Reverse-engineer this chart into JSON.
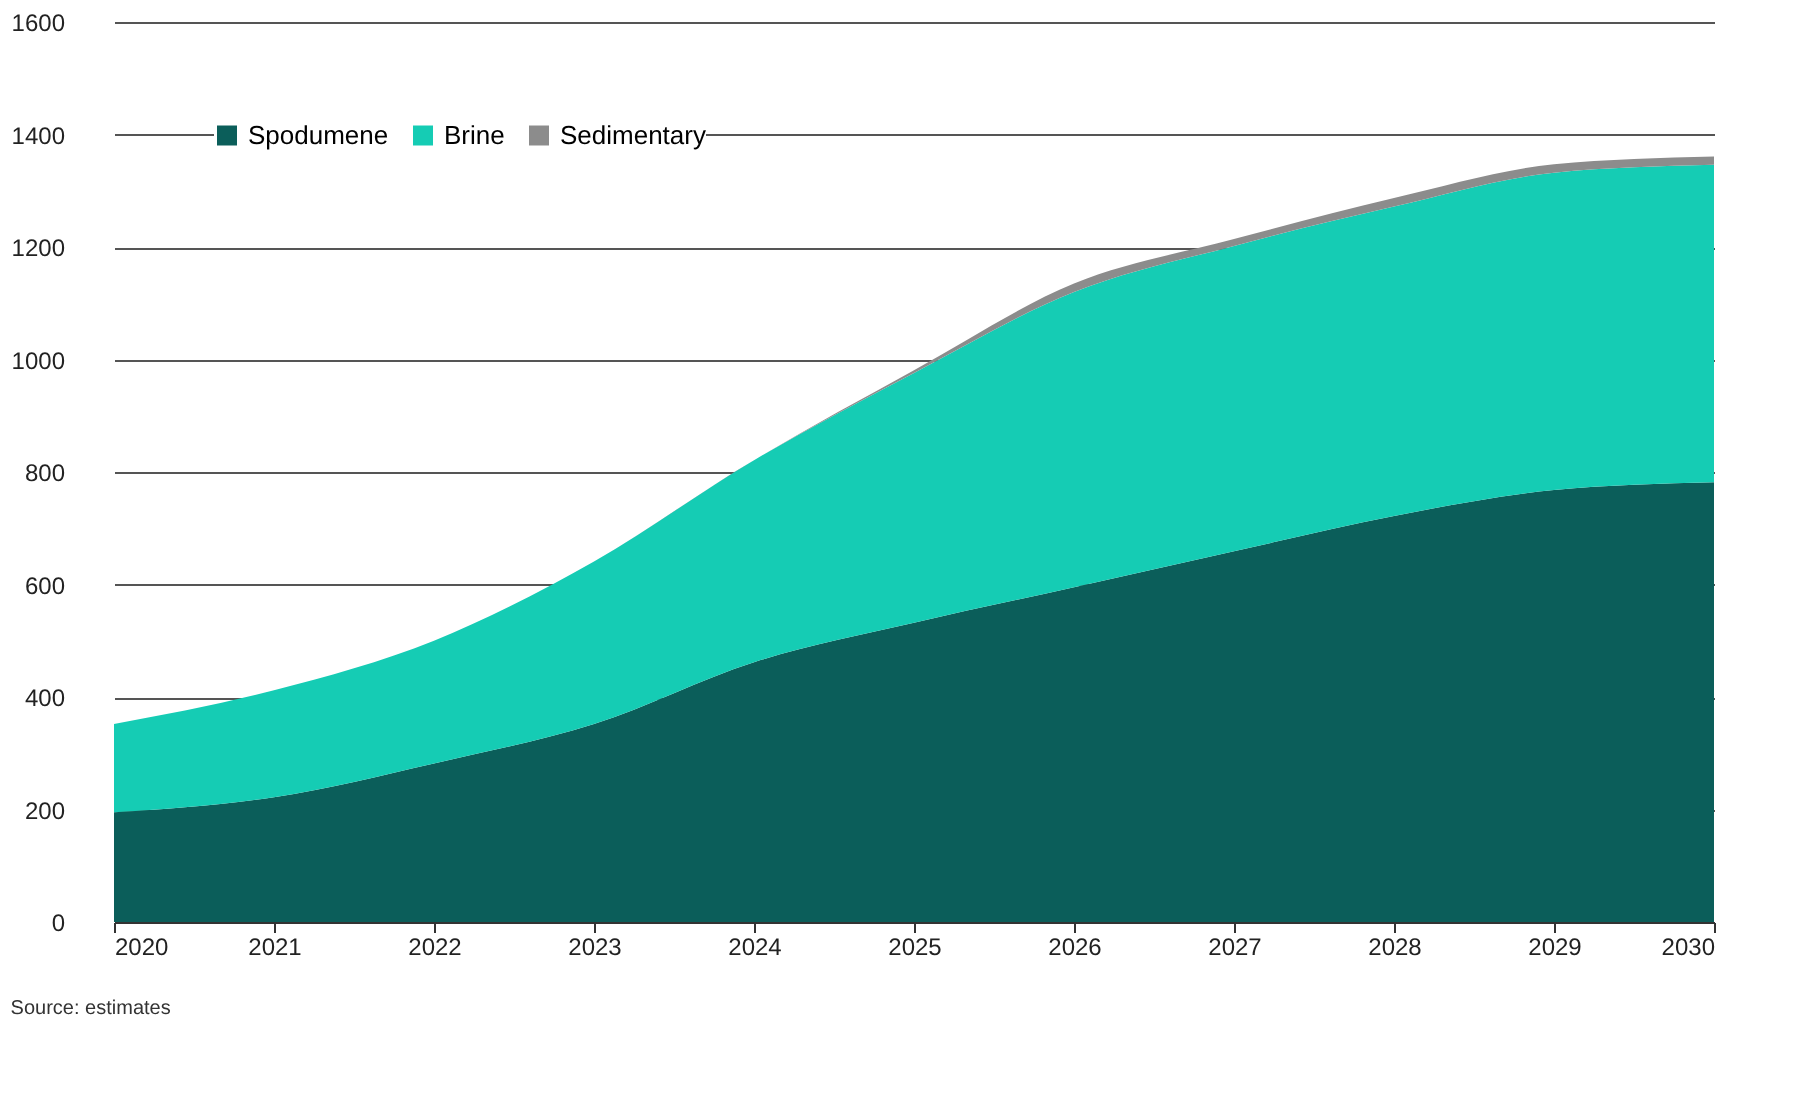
{
  "chart_data": {
    "type": "area",
    "stacked": true,
    "categories": [
      "2020",
      "2021",
      "2022",
      "2023",
      "2024",
      "2025",
      "2026",
      "2027",
      "2028",
      "2029",
      "2030"
    ],
    "series": [
      {
        "name": "Spodumene",
        "color": "#0b5e5a",
        "values": [
          195,
          222,
          282,
          352,
          462,
          532,
          595,
          659,
          722,
          768,
          782
        ]
      },
      {
        "name": "Brine",
        "color": "#15ccb4",
        "values": [
          157,
          190,
          218,
          289,
          359,
          444,
          525,
          543,
          550,
          564,
          564
        ]
      },
      {
        "name": "Sedimentary",
        "color": "#8c8c8c",
        "values": [
          0,
          0,
          0,
          0,
          0,
          5,
          15,
          12,
          15,
          15,
          15
        ]
      }
    ],
    "ylim": [
      0,
      1600
    ],
    "yticks": [
      0,
      200,
      400,
      600,
      800,
      1000,
      1200,
      1400,
      1600
    ],
    "grid": "y",
    "legend": "top left",
    "annotations": [
      "Source: estimates"
    ]
  }
}
